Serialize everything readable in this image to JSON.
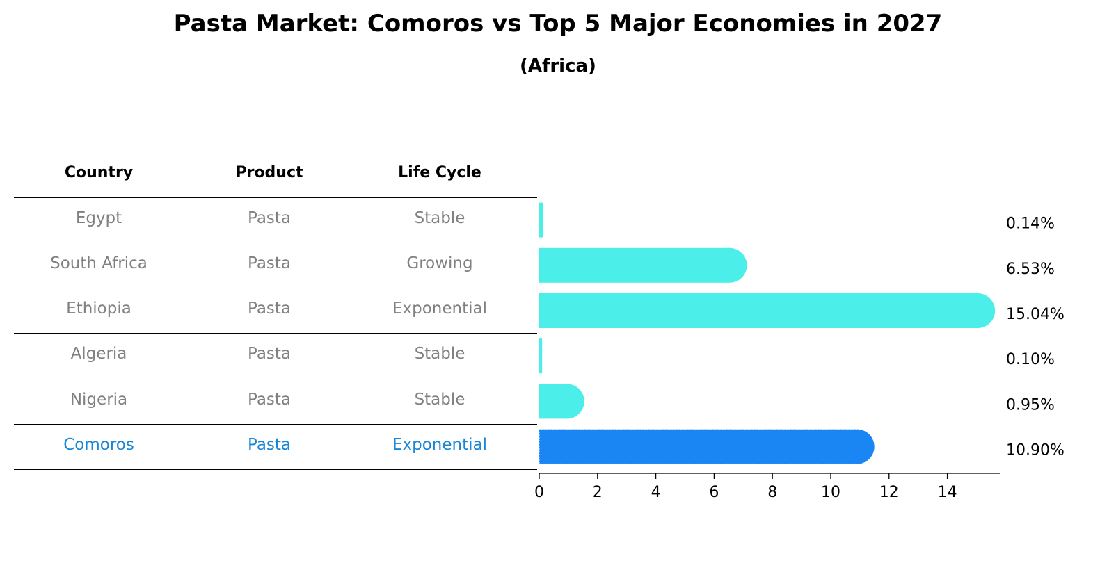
{
  "title": "Pasta Market: Comoros vs Top 5 Major Economies in 2027",
  "subtitle": "(Africa)",
  "table": {
    "headers": [
      "Country",
      "Product",
      "Life Cycle"
    ],
    "rows": [
      {
        "country": "Egypt",
        "product": "Pasta",
        "life_cycle": "Stable"
      },
      {
        "country": "South Africa",
        "product": "Pasta",
        "life_cycle": "Growing"
      },
      {
        "country": "Ethiopia",
        "product": "Pasta",
        "life_cycle": "Exponential"
      },
      {
        "country": "Algeria",
        "product": "Pasta",
        "life_cycle": "Stable"
      },
      {
        "country": "Nigeria",
        "product": "Pasta",
        "life_cycle": "Stable"
      },
      {
        "country": "Comoros",
        "product": "Pasta",
        "life_cycle": "Exponential"
      }
    ]
  },
  "chart_data": {
    "type": "bar",
    "orientation": "horizontal",
    "categories": [
      "Egypt",
      "South Africa",
      "Ethiopia",
      "Algeria",
      "Nigeria",
      "Comoros"
    ],
    "values": [
      0.14,
      6.53,
      15.04,
      0.1,
      0.95,
      10.9
    ],
    "labels": [
      "0.14%",
      "6.53%",
      "15.04%",
      "0.10%",
      "0.95%",
      "10.90%"
    ],
    "highlight": "Comoros",
    "xlim": [
      0,
      15.8
    ],
    "xticks": [
      0,
      2,
      4,
      6,
      8,
      10,
      12,
      14
    ],
    "title": "Pasta Market: Comoros vs Top 5 Major Economies in 2027",
    "xlabel": "",
    "ylabel": "",
    "colors": {
      "default": "#4beee9",
      "highlight": "#1a86f4",
      "table_highlight": "#1a86d6",
      "table_text": "#808080"
    }
  }
}
